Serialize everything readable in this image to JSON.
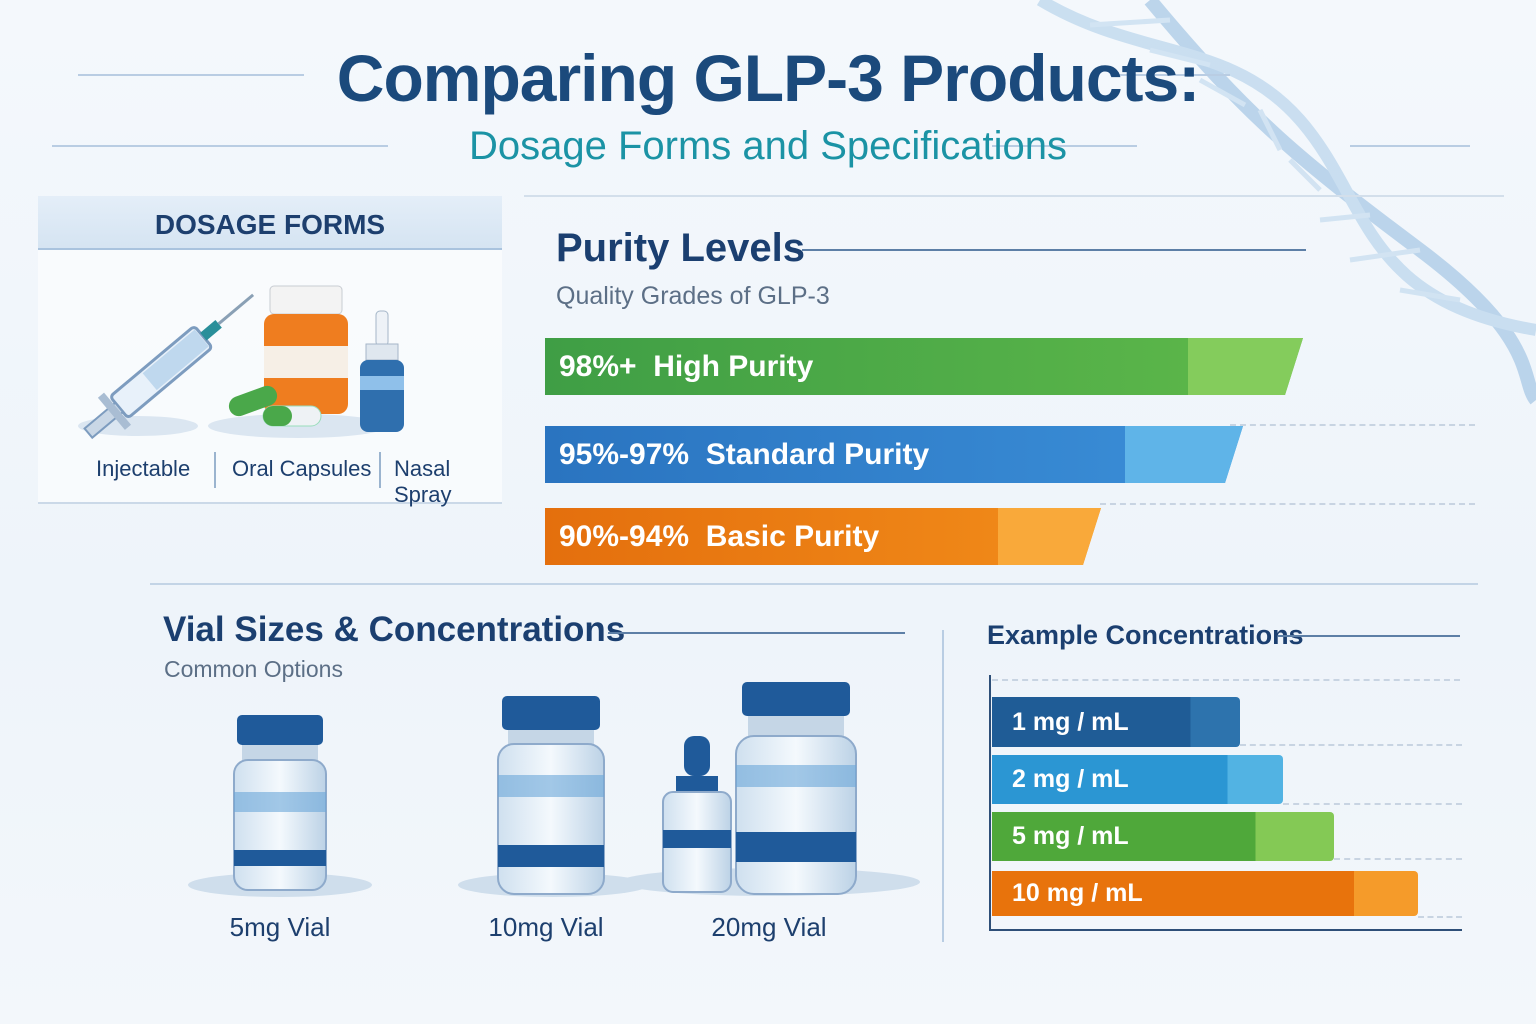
{
  "header": {
    "title": "Comparing GLP-3 Products:",
    "subtitle": "Dosage Forms and Specifications"
  },
  "dosage_forms": {
    "heading": "DOSAGE FORMS",
    "items": [
      {
        "label": "Injectable",
        "icon": "syringe-icon"
      },
      {
        "label": "Oral Capsules",
        "icon": "pill-bottle-icon"
      },
      {
        "label": "Nasal Spray",
        "icon": "nasal-spray-icon"
      }
    ]
  },
  "purity": {
    "title": "Purity Levels",
    "subtitle": "Quality Grades of GLP-3",
    "levels": [
      {
        "range": "98%+",
        "label": "High Purity",
        "color": "#4caf50"
      },
      {
        "range": "95%-97%",
        "label": "Standard Purity",
        "color": "#2f80cc"
      },
      {
        "range": "90%-94%",
        "label": "Basic Purity",
        "color": "#ee7f12"
      }
    ]
  },
  "vials": {
    "title": "Vial Sizes & Concentrations",
    "subtitle": "Common Options",
    "items": [
      {
        "label": "5mg Vial"
      },
      {
        "label": "10mg Vial"
      },
      {
        "label": "20mg Vial"
      }
    ]
  },
  "concentrations": {
    "title": "Example Concentrations",
    "items": [
      {
        "label": "1 mg / mL",
        "value": 1,
        "color": "#1f5c96"
      },
      {
        "label": "2 mg / mL",
        "value": 2,
        "color": "#2b96d3"
      },
      {
        "label": "5 mg / mL",
        "value": 5,
        "color": "#5cb23d"
      },
      {
        "label": "10 mg / mL",
        "value": 10,
        "color": "#ee7d10"
      }
    ]
  }
}
